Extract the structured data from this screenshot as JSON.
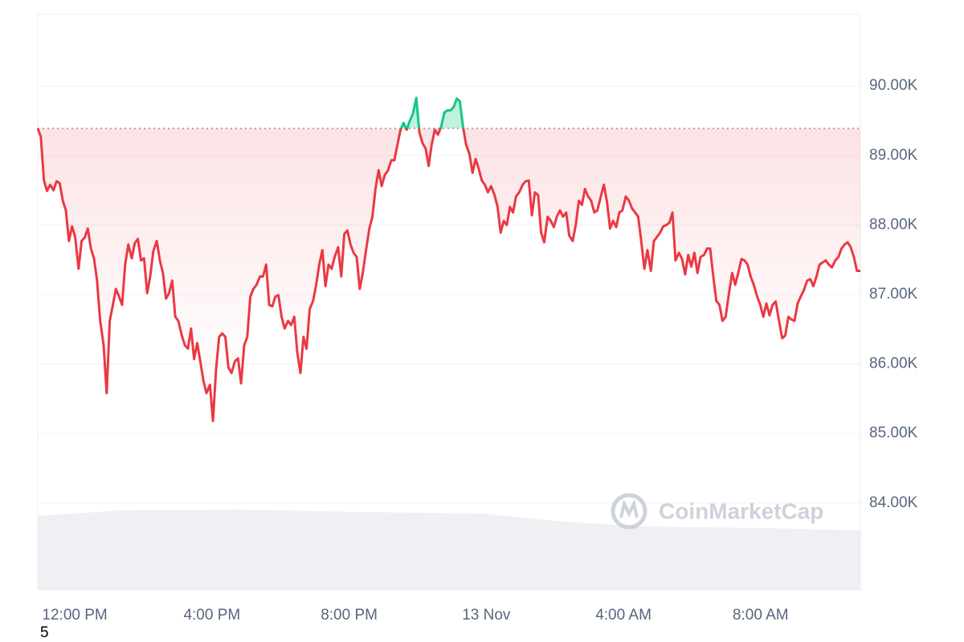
{
  "chart_data": {
    "type": "line",
    "x": [
      10.92,
      11.01,
      11.1,
      11.19,
      11.28,
      11.38,
      11.47,
      11.56,
      11.65,
      11.74,
      11.83,
      11.92,
      12.01,
      12.11,
      12.2,
      12.29,
      12.38,
      12.47,
      12.56,
      12.65,
      12.74,
      12.84,
      12.93,
      13.02,
      13.11,
      13.2,
      13.29,
      13.38,
      13.47,
      13.56,
      13.66,
      13.75,
      13.84,
      13.93,
      14.02,
      14.11,
      14.2,
      14.29,
      14.39,
      14.48,
      14.57,
      14.66,
      14.75,
      14.84,
      14.93,
      15.02,
      15.12,
      15.21,
      15.3,
      15.39,
      15.48,
      15.57,
      15.66,
      15.75,
      15.84,
      15.94,
      16.03,
      16.12,
      16.21,
      16.3,
      16.39,
      16.48,
      16.57,
      16.67,
      16.76,
      16.85,
      16.94,
      17.03,
      17.12,
      17.21,
      17.3,
      17.4,
      17.49,
      17.58,
      17.67,
      17.76,
      17.85,
      17.94,
      18.03,
      18.12,
      18.22,
      18.31,
      18.4,
      18.49,
      18.58,
      18.67,
      18.76,
      18.85,
      18.95,
      19.04,
      19.13,
      19.22,
      19.31,
      19.4,
      19.49,
      19.58,
      19.68,
      19.77,
      19.86,
      19.95,
      20.04,
      20.13,
      20.22,
      20.31,
      20.4,
      20.5,
      20.59,
      20.68,
      20.77,
      20.86,
      20.95,
      21.04,
      21.13,
      21.23,
      21.32,
      21.41,
      21.5,
      21.59,
      21.68,
      21.77,
      21.86,
      21.96,
      22.05,
      22.14,
      22.23,
      22.32,
      22.41,
      22.5,
      22.59,
      22.68,
      22.78,
      22.87,
      22.96,
      23.05,
      23.14,
      23.23,
      23.32,
      23.41,
      23.51,
      23.6,
      23.69,
      23.78,
      23.87,
      23.96,
      24.05,
      24.14,
      24.24,
      24.33,
      24.42,
      24.51,
      24.6,
      24.69,
      24.78,
      24.87,
      24.96,
      25.06,
      25.15,
      25.24,
      25.33,
      25.42,
      25.51,
      25.6,
      25.69,
      25.79,
      25.88,
      25.97,
      26.06,
      26.15,
      26.24,
      26.33,
      26.42,
      26.52,
      26.61,
      26.7,
      26.79,
      26.88,
      26.97,
      27.06,
      27.15,
      27.24,
      27.34,
      27.43,
      27.52,
      27.61,
      27.7,
      27.79,
      27.88,
      27.97,
      28.07,
      28.16,
      28.25,
      28.34,
      28.43,
      28.52,
      28.61,
      28.7,
      28.8,
      28.89,
      28.98,
      29.07,
      29.16,
      29.25,
      29.34,
      29.43,
      29.52,
      29.62,
      29.71,
      29.8,
      29.89,
      29.98,
      30.07,
      30.16,
      30.25,
      30.35,
      30.44,
      30.53,
      30.62,
      30.71,
      30.8,
      30.89,
      30.98,
      31.08,
      31.17,
      31.26,
      31.35,
      31.44,
      31.53,
      31.62,
      31.71,
      31.8,
      31.9,
      31.99,
      32.08,
      32.17,
      32.26,
      32.35,
      32.44,
      32.53,
      32.63,
      32.72,
      32.81,
      32.9,
      32.99,
      33.08,
      33.17,
      33.26,
      33.36,
      33.45,
      33.54,
      33.63,
      33.72,
      33.81,
      33.9,
      33.99,
      34.08,
      34.18,
      34.27,
      34.36,
      34.45,
      34.54,
      34.63,
      34.72,
      34.81,
      34.91
    ],
    "values": [
      89390,
      89270,
      88640,
      88490,
      88580,
      88500,
      88630,
      88600,
      88350,
      88210,
      87770,
      87980,
      87830,
      87370,
      87770,
      87820,
      87950,
      87660,
      87520,
      87200,
      86620,
      86270,
      85580,
      86620,
      86850,
      87080,
      86970,
      86850,
      87430,
      87720,
      87520,
      87740,
      87800,
      87490,
      87520,
      87020,
      87260,
      87620,
      87770,
      87490,
      87310,
      86940,
      87020,
      87200,
      86680,
      86620,
      86410,
      86270,
      86220,
      86510,
      86070,
      86300,
      86040,
      85760,
      85580,
      85700,
      85180,
      85930,
      86390,
      86440,
      86390,
      85950,
      85870,
      86040,
      86080,
      85720,
      86270,
      86390,
      86970,
      87080,
      87140,
      87260,
      87260,
      87430,
      86850,
      86830,
      86970,
      86990,
      86680,
      86510,
      86620,
      86560,
      86680,
      86160,
      85870,
      86390,
      86220,
      86790,
      86910,
      87140,
      87430,
      87640,
      87120,
      87430,
      87370,
      87540,
      87680,
      87260,
      87870,
      87920,
      87720,
      87600,
      87540,
      87080,
      87310,
      87660,
      87950,
      88120,
      88520,
      88790,
      88560,
      88720,
      88780,
      88930,
      88930,
      89160,
      89370,
      89470,
      89370,
      89500,
      89600,
      89830,
      89330,
      89180,
      89100,
      88850,
      89160,
      89370,
      89300,
      89410,
      89620,
      89650,
      89650,
      89700,
      89820,
      89780,
      89420,
      89160,
      89020,
      88750,
      88950,
      88810,
      88640,
      88580,
      88470,
      88560,
      88430,
      88260,
      87890,
      88060,
      88000,
      88260,
      88180,
      88410,
      88470,
      88580,
      88630,
      88640,
      88140,
      88470,
      88430,
      87890,
      87750,
      88120,
      88060,
      87970,
      88120,
      88210,
      88120,
      88180,
      87850,
      87770,
      88000,
      88350,
      88290,
      88520,
      88410,
      88350,
      88180,
      88210,
      88410,
      88580,
      88330,
      87950,
      88060,
      87970,
      88180,
      88210,
      88410,
      88350,
      88240,
      88180,
      88120,
      87770,
      87370,
      87640,
      87340,
      87770,
      87830,
      87890,
      87980,
      88000,
      88030,
      88180,
      87490,
      87600,
      87510,
      87290,
      87570,
      87400,
      87600,
      87310,
      87540,
      87570,
      87660,
      87660,
      87260,
      86910,
      86850,
      86620,
      86680,
      87020,
      87310,
      87140,
      87310,
      87510,
      87490,
      87430,
      87260,
      87140,
      86970,
      86850,
      86680,
      86870,
      86700,
      86850,
      86900,
      86640,
      86370,
      86410,
      86680,
      86640,
      86620,
      86870,
      86970,
      87060,
      87200,
      87220,
      87120,
      87260,
      87430,
      87460,
      87490,
      87430,
      87390,
      87490,
      87540,
      87660,
      87720,
      87750,
      87680,
      87540,
      87340,
      87340
    ],
    "baseline": 89390,
    "color_up": "#16c784",
    "color_down": "#ea3943",
    "xlim": [
      10.92,
      34.91
    ],
    "xticks": [
      {
        "value": 12,
        "label": "12:00 PM"
      },
      {
        "value": 16,
        "label": "4:00 PM"
      },
      {
        "value": 20,
        "label": "8:00 PM"
      },
      {
        "value": 24,
        "label": "13 Nov"
      },
      {
        "value": 28,
        "label": "4:00 AM"
      },
      {
        "value": 32,
        "label": "8:00 AM"
      }
    ],
    "ylim": [
      82750,
      91030
    ],
    "yticks": [
      {
        "value": 84000,
        "label": "84.00K"
      },
      {
        "value": 85000,
        "label": "85.00K"
      },
      {
        "value": 86000,
        "label": "86.00K"
      },
      {
        "value": 87000,
        "label": "87.00K"
      },
      {
        "value": 88000,
        "label": "88.00K"
      },
      {
        "value": 89000,
        "label": "89.00K"
      },
      {
        "value": 90000,
        "label": "90.00K"
      }
    ],
    "grid": true
  },
  "watermark": "CoinMarketCap",
  "footer_text": "5"
}
